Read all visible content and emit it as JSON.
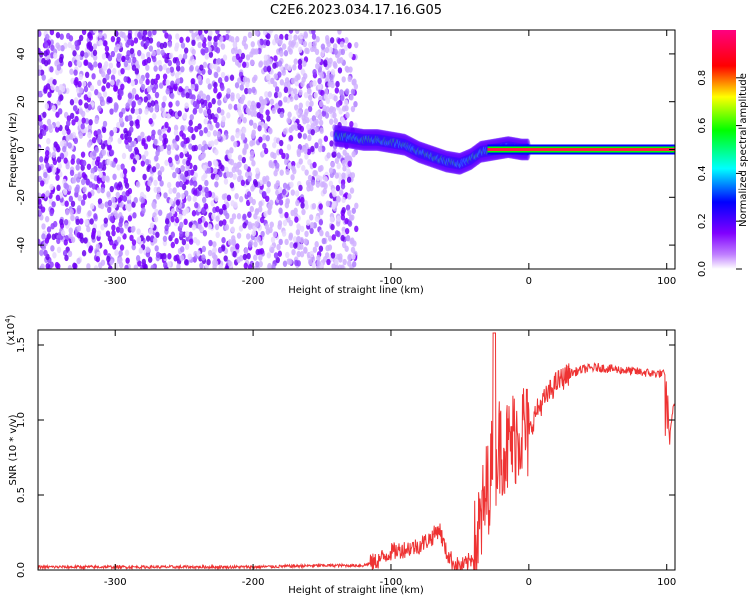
{
  "title": "C2E6.2023.034.17.16.G05",
  "chart_data": [
    {
      "type": "heatmap",
      "xlabel": "Height of straight line (km)",
      "ylabel": "Frequency (Hz)",
      "xlim": [
        -356,
        106
      ],
      "ylim": [
        -50,
        50
      ],
      "xticks": [
        -300,
        -200,
        -100,
        0,
        100
      ],
      "xtick_labels": [
        "-300",
        "-200",
        "-100",
        "0",
        "100"
      ],
      "yticks": [
        -40,
        -20,
        0,
        20,
        40
      ],
      "ytick_labels": [
        "-40",
        "-20",
        "0",
        "20",
        "40"
      ],
      "colorbar": {
        "label": "Normalized spectral amplitude",
        "range": [
          0,
          1
        ],
        "ticks": [
          0,
          0.2,
          0.4,
          0.6,
          0.8
        ],
        "tick_labels": [
          "0.0",
          "0.2",
          "0.4",
          "0.6",
          "0.8"
        ],
        "colormap": "rainbow",
        "colors": [
          "#ffffff",
          "#8000ff",
          "#0000ff",
          "#00ffff",
          "#00ff00",
          "#ffff00",
          "#ff0000",
          "#ff0080"
        ]
      },
      "noise_region_x": [
        -356,
        -125
      ],
      "signal_track": [
        {
          "x": -143,
          "y": 6
        },
        {
          "x": -130,
          "y": 5
        },
        {
          "x": -120,
          "y": 4
        },
        {
          "x": -110,
          "y": 4
        },
        {
          "x": -100,
          "y": 3
        },
        {
          "x": -90,
          "y": 2
        },
        {
          "x": -80,
          "y": -1
        },
        {
          "x": -70,
          "y": -3
        },
        {
          "x": -60,
          "y": -5
        },
        {
          "x": -50,
          "y": -6
        },
        {
          "x": -42,
          "y": -4
        },
        {
          "x": -35,
          "y": -1
        },
        {
          "x": -25,
          "y": 0
        },
        {
          "x": -15,
          "y": 1
        },
        {
          "x": -5,
          "y": 0
        },
        {
          "x": 0,
          "y": 0
        },
        {
          "x": 106,
          "y": 0
        }
      ],
      "grid": false
    },
    {
      "type": "line",
      "xlabel": "Height of straight line (km)",
      "ylabel": "SNR (10 * v/v)",
      "yscale_label": "(x10",
      "yscale_exp": "4",
      "yscale_close": ")",
      "xlim": [
        -356,
        106
      ],
      "ylim": [
        0,
        1.6
      ],
      "xticks": [
        -300,
        -200,
        -100,
        0,
        100
      ],
      "xtick_labels": [
        "-300",
        "-200",
        "-100",
        "0",
        "100"
      ],
      "yticks": [
        0,
        0.5,
        1.0,
        1.5
      ],
      "ytick_labels": [
        "0.0",
        "0.5",
        "1.0",
        "1.5"
      ],
      "color": "#ee3333",
      "series": [
        {
          "x": [
            -356,
            -300,
            -250,
            -200,
            -150,
            -120,
            -110,
            -100,
            -90,
            -80,
            -70,
            -65,
            -60,
            -55,
            -50,
            -45,
            -40,
            -35,
            -30,
            -25,
            -20,
            -15,
            -10,
            -5,
            0,
            5,
            10,
            20,
            30,
            40,
            50,
            60,
            70,
            80,
            90,
            95,
            100,
            102,
            104,
            106
          ],
          "y": [
            0.02,
            0.02,
            0.02,
            0.02,
            0.03,
            0.03,
            0.06,
            0.12,
            0.14,
            0.16,
            0.22,
            0.28,
            0.12,
            0.05,
            0.02,
            0.04,
            0.1,
            0.3,
            0.55,
            0.75,
            0.85,
            0.8,
            0.9,
            0.95,
            0.9,
            1.05,
            1.12,
            1.25,
            1.31,
            1.34,
            1.35,
            1.34,
            1.33,
            1.32,
            1.31,
            1.31,
            1.3,
            0.85,
            1.05,
            1.1
          ]
        }
      ],
      "grid": false
    }
  ]
}
